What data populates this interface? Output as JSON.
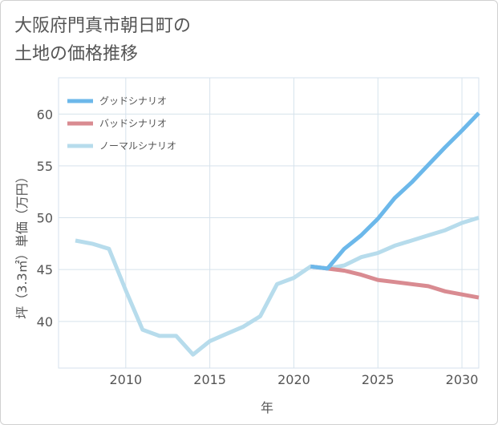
{
  "title": "大阪府門真市朝日町の\n土地の価格推移",
  "chart_data": {
    "type": "line",
    "xlabel": "年",
    "ylabel": "坪（3.3㎡）単価（万円）",
    "xlim": [
      2006,
      2031
    ],
    "ylim": [
      35.5,
      63.5
    ],
    "xticks": [
      2010,
      2015,
      2020,
      2025,
      2030
    ],
    "yticks": [
      40,
      45,
      50,
      55,
      60
    ],
    "grid": true,
    "legend_position": "top-left",
    "series": [
      {
        "name": "グッドシナリオ",
        "color": "#6cb8ea",
        "x": [
          2021,
          2022,
          2023,
          2024,
          2025,
          2026,
          2027,
          2028,
          2029,
          2030,
          2031
        ],
        "values": [
          45.3,
          45.1,
          47.0,
          48.3,
          49.9,
          51.9,
          53.4,
          55.1,
          56.8,
          58.4,
          60.1
        ]
      },
      {
        "name": "バッドシナリオ",
        "color": "#d98b91",
        "x": [
          2021,
          2022,
          2023,
          2024,
          2025,
          2026,
          2027,
          2028,
          2029,
          2030,
          2031
        ],
        "values": [
          45.3,
          45.1,
          44.9,
          44.5,
          44.0,
          43.8,
          43.6,
          43.4,
          42.9,
          42.6,
          42.3
        ]
      },
      {
        "name": "ノーマルシナリオ",
        "color": "#b7dcec",
        "x": [
          2007,
          2008,
          2009,
          2010,
          2011,
          2012,
          2013,
          2014,
          2015,
          2016,
          2017,
          2018,
          2019,
          2020,
          2021,
          2022,
          2023,
          2024,
          2025,
          2026,
          2027,
          2028,
          2029,
          2030,
          2031
        ],
        "values": [
          47.8,
          47.5,
          47.0,
          43.0,
          39.2,
          38.6,
          38.6,
          36.8,
          38.1,
          38.8,
          39.5,
          40.5,
          43.6,
          44.2,
          45.3,
          45.1,
          45.4,
          46.2,
          46.6,
          47.3,
          47.8,
          48.3,
          48.8,
          49.5,
          50.0
        ]
      }
    ]
  }
}
